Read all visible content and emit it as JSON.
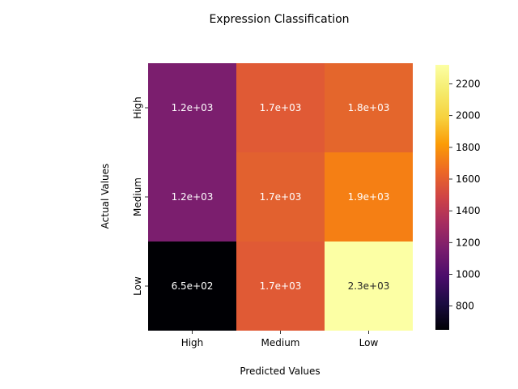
{
  "chart_data": {
    "type": "heatmap",
    "title": "Expression Classification",
    "xlabel": "Predicted Values",
    "ylabel": "Actual Values",
    "x_categories": [
      "High",
      "Medium",
      "Low"
    ],
    "y_categories": [
      "High",
      "Medium",
      "Low"
    ],
    "values": [
      [
        1200,
        1700,
        1800
      ],
      [
        1200,
        1700,
        1900
      ],
      [
        650,
        1700,
        2300
      ]
    ],
    "annotations": [
      [
        "1.2e+03",
        "1.7e+03",
        "1.8e+03"
      ],
      [
        "1.2e+03",
        "1.7e+03",
        "1.9e+03"
      ],
      [
        "6.5e+02",
        "1.7e+03",
        "2.3e+03"
      ]
    ],
    "colormap": "inferno",
    "cell_colors": [
      [
        "#7b1e6e",
        "#e05a35",
        "#e4662c"
      ],
      [
        "#7b1e6e",
        "#e2612f",
        "#f57f14"
      ],
      [
        "#000004",
        "#e05a35",
        "#fcffa4"
      ]
    ],
    "colorbar": {
      "range": [
        650,
        2320
      ],
      "ticks": [
        800,
        1000,
        1200,
        1400,
        1600,
        1800,
        2000,
        2200
      ]
    }
  }
}
